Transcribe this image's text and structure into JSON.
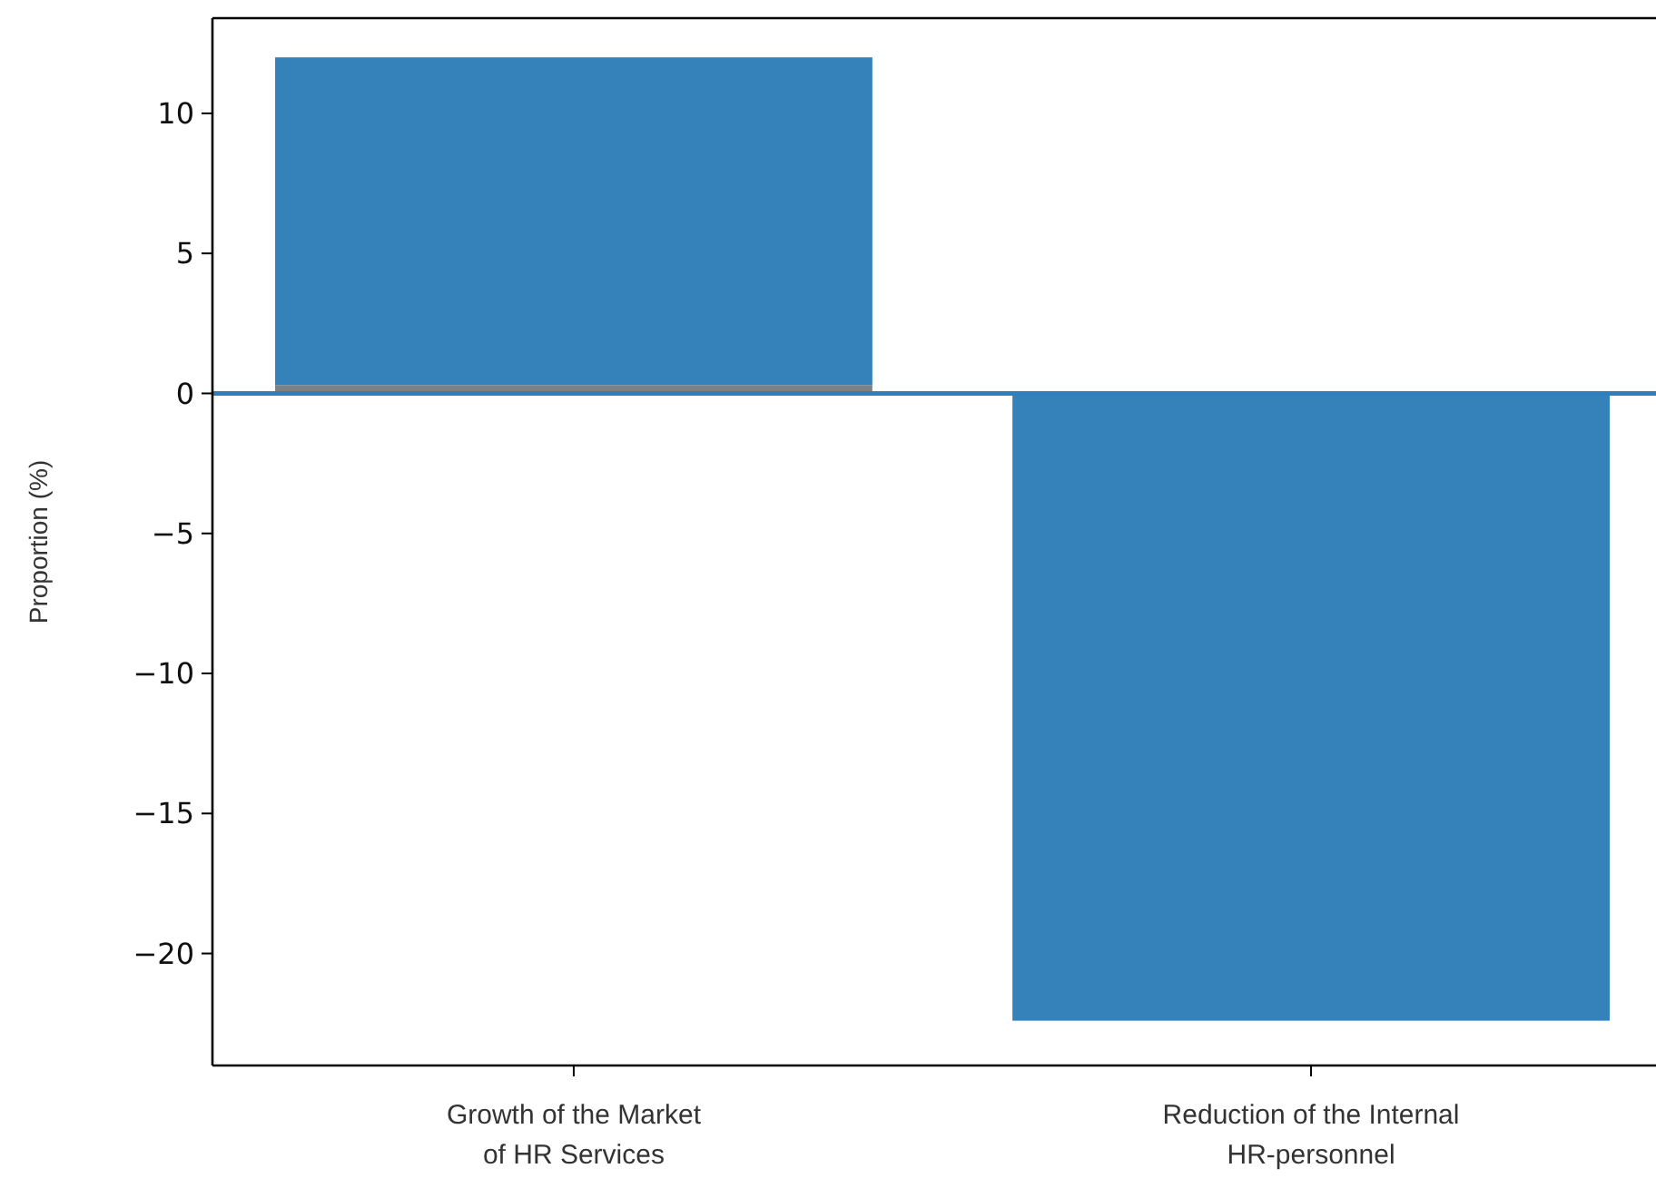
{
  "chart_data": {
    "type": "bar",
    "ylabel": "Proportion (%)",
    "categories": [
      "Growth of the Market\nof HR Services",
      "Reduction of the Internal\nHR-personnel"
    ],
    "stacked": true,
    "series": [
      {
        "color": "#808080",
        "values": [
          0.3,
          null
        ]
      },
      {
        "color": "#3482b9",
        "values": [
          11.7,
          -22.4
        ]
      }
    ],
    "ylim": [
      -24,
      13.4
    ],
    "yticks": [
      {
        "value": -20,
        "label": "−20"
      },
      {
        "value": -15,
        "label": "−15"
      },
      {
        "value": -10,
        "label": "−10"
      },
      {
        "value": -5,
        "label": "−5"
      },
      0,
      5,
      10
    ],
    "ref_lines": [
      {
        "axis": "y",
        "value": 0,
        "color": "#2f7fbf"
      }
    ]
  }
}
